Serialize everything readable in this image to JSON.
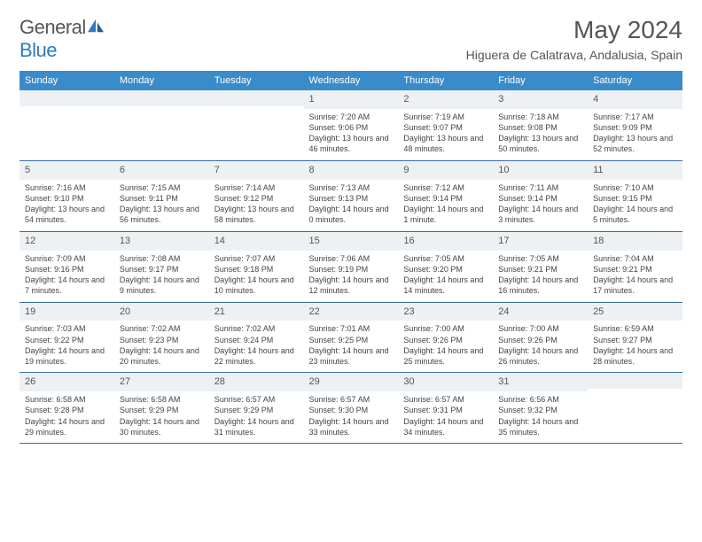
{
  "brand": {
    "name1": "General",
    "name2": "Blue"
  },
  "title": "May 2024",
  "location": "Higuera de Calatrava, Andalusia, Spain",
  "colors": {
    "header_bg": "#3a8bc9",
    "header_text": "#ffffff",
    "daynum_bg": "#eef1f3",
    "row_border": "#3a6ea5",
    "brand_blue": "#2f7bbf",
    "text": "#444444"
  },
  "weekdays": [
    "Sunday",
    "Monday",
    "Tuesday",
    "Wednesday",
    "Thursday",
    "Friday",
    "Saturday"
  ],
  "weeks": [
    [
      null,
      null,
      null,
      {
        "n": "1",
        "sr": "7:20 AM",
        "ss": "9:06 PM",
        "dl": "13 hours and 46 minutes."
      },
      {
        "n": "2",
        "sr": "7:19 AM",
        "ss": "9:07 PM",
        "dl": "13 hours and 48 minutes."
      },
      {
        "n": "3",
        "sr": "7:18 AM",
        "ss": "9:08 PM",
        "dl": "13 hours and 50 minutes."
      },
      {
        "n": "4",
        "sr": "7:17 AM",
        "ss": "9:09 PM",
        "dl": "13 hours and 52 minutes."
      }
    ],
    [
      {
        "n": "5",
        "sr": "7:16 AM",
        "ss": "9:10 PM",
        "dl": "13 hours and 54 minutes."
      },
      {
        "n": "6",
        "sr": "7:15 AM",
        "ss": "9:11 PM",
        "dl": "13 hours and 56 minutes."
      },
      {
        "n": "7",
        "sr": "7:14 AM",
        "ss": "9:12 PM",
        "dl": "13 hours and 58 minutes."
      },
      {
        "n": "8",
        "sr": "7:13 AM",
        "ss": "9:13 PM",
        "dl": "14 hours and 0 minutes."
      },
      {
        "n": "9",
        "sr": "7:12 AM",
        "ss": "9:14 PM",
        "dl": "14 hours and 1 minute."
      },
      {
        "n": "10",
        "sr": "7:11 AM",
        "ss": "9:14 PM",
        "dl": "14 hours and 3 minutes."
      },
      {
        "n": "11",
        "sr": "7:10 AM",
        "ss": "9:15 PM",
        "dl": "14 hours and 5 minutes."
      }
    ],
    [
      {
        "n": "12",
        "sr": "7:09 AM",
        "ss": "9:16 PM",
        "dl": "14 hours and 7 minutes."
      },
      {
        "n": "13",
        "sr": "7:08 AM",
        "ss": "9:17 PM",
        "dl": "14 hours and 9 minutes."
      },
      {
        "n": "14",
        "sr": "7:07 AM",
        "ss": "9:18 PM",
        "dl": "14 hours and 10 minutes."
      },
      {
        "n": "15",
        "sr": "7:06 AM",
        "ss": "9:19 PM",
        "dl": "14 hours and 12 minutes."
      },
      {
        "n": "16",
        "sr": "7:05 AM",
        "ss": "9:20 PM",
        "dl": "14 hours and 14 minutes."
      },
      {
        "n": "17",
        "sr": "7:05 AM",
        "ss": "9:21 PM",
        "dl": "14 hours and 16 minutes."
      },
      {
        "n": "18",
        "sr": "7:04 AM",
        "ss": "9:21 PM",
        "dl": "14 hours and 17 minutes."
      }
    ],
    [
      {
        "n": "19",
        "sr": "7:03 AM",
        "ss": "9:22 PM",
        "dl": "14 hours and 19 minutes."
      },
      {
        "n": "20",
        "sr": "7:02 AM",
        "ss": "9:23 PM",
        "dl": "14 hours and 20 minutes."
      },
      {
        "n": "21",
        "sr": "7:02 AM",
        "ss": "9:24 PM",
        "dl": "14 hours and 22 minutes."
      },
      {
        "n": "22",
        "sr": "7:01 AM",
        "ss": "9:25 PM",
        "dl": "14 hours and 23 minutes."
      },
      {
        "n": "23",
        "sr": "7:00 AM",
        "ss": "9:26 PM",
        "dl": "14 hours and 25 minutes."
      },
      {
        "n": "24",
        "sr": "7:00 AM",
        "ss": "9:26 PM",
        "dl": "14 hours and 26 minutes."
      },
      {
        "n": "25",
        "sr": "6:59 AM",
        "ss": "9:27 PM",
        "dl": "14 hours and 28 minutes."
      }
    ],
    [
      {
        "n": "26",
        "sr": "6:58 AM",
        "ss": "9:28 PM",
        "dl": "14 hours and 29 minutes."
      },
      {
        "n": "27",
        "sr": "6:58 AM",
        "ss": "9:29 PM",
        "dl": "14 hours and 30 minutes."
      },
      {
        "n": "28",
        "sr": "6:57 AM",
        "ss": "9:29 PM",
        "dl": "14 hours and 31 minutes."
      },
      {
        "n": "29",
        "sr": "6:57 AM",
        "ss": "9:30 PM",
        "dl": "14 hours and 33 minutes."
      },
      {
        "n": "30",
        "sr": "6:57 AM",
        "ss": "9:31 PM",
        "dl": "14 hours and 34 minutes."
      },
      {
        "n": "31",
        "sr": "6:56 AM",
        "ss": "9:32 PM",
        "dl": "14 hours and 35 minutes."
      },
      null
    ]
  ],
  "labels": {
    "sunrise": "Sunrise:",
    "sunset": "Sunset:",
    "daylight": "Daylight:"
  }
}
